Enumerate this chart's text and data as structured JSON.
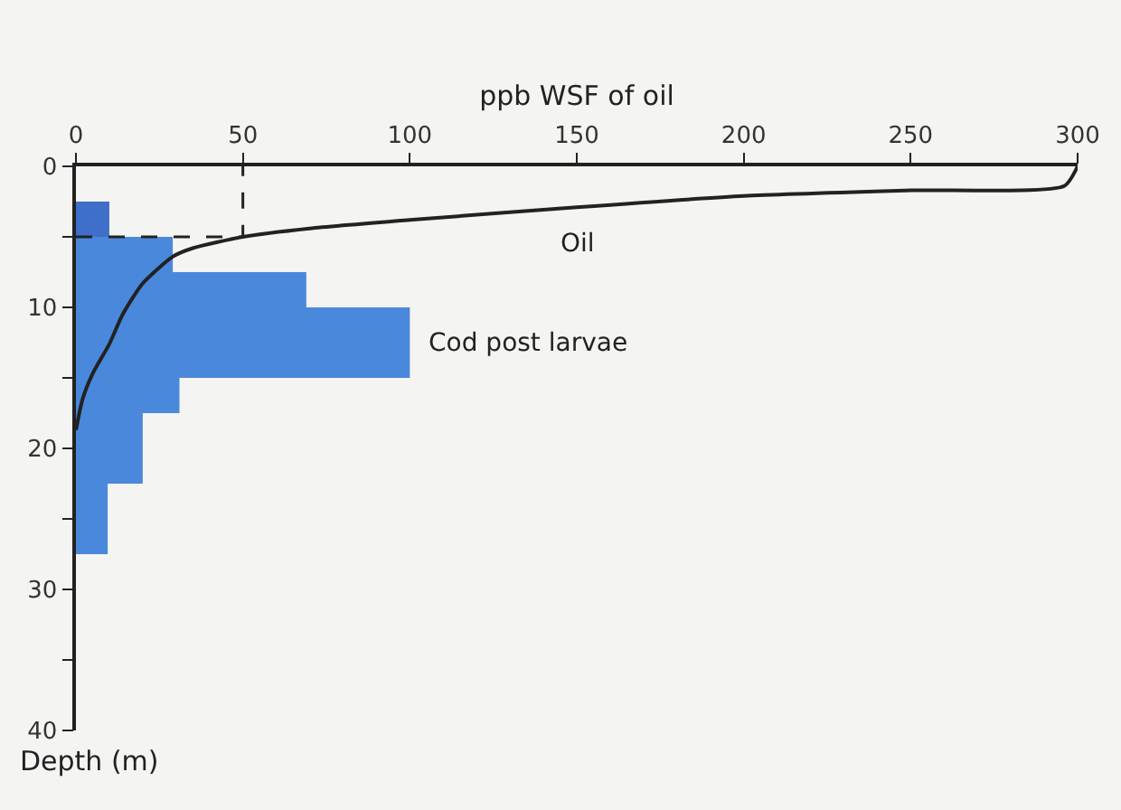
{
  "chart_data": {
    "type": "histogram",
    "orientation": "horizontal",
    "xlabel": "ppb WSF of oil",
    "ylabel": "Depth (m)",
    "xlim": [
      0,
      300
    ],
    "xticks": [
      0,
      50,
      100,
      150,
      200,
      250,
      300
    ],
    "ylim": [
      40,
      0
    ],
    "yticks": [
      0,
      {
        "value": 5,
        "label": null
      },
      10,
      {
        "value": 15,
        "label": null
      },
      20,
      {
        "value": 25,
        "label": null
      },
      30,
      {
        "value": 35,
        "label": null
      },
      40
    ],
    "grid": false,
    "series": [
      {
        "name": "Cod post larvae",
        "bins": [
          2.5,
          5,
          7.5,
          10,
          15,
          17.5,
          22.5,
          27.5
        ],
        "values": [
          10,
          29,
          69,
          100,
          31,
          20,
          9.5
        ],
        "colors": [
          "#3f6fc8",
          "#4a88dc",
          "#4a88dc",
          "#4a88dc",
          "#4a88dc",
          "#4a88dc",
          "#4a88dc"
        ]
      },
      {
        "name": "Oil",
        "type": "line",
        "color": "#222222",
        "line_style": "solid",
        "x": [
          0,
          1.4,
          1.7,
          2.1,
          2.9,
          3.8,
          4.4,
          5.0,
          5.8,
          6.4,
          8.3,
          10.5,
          12.6,
          14.7,
          16.5,
          18.7
        ],
        "values": [
          300,
          296,
          250,
          200,
          150,
          100,
          70,
          50,
          35,
          29,
          20,
          14,
          10,
          5,
          2,
          0
        ]
      },
      {
        "type": "line",
        "color": "#222222",
        "line_style": "dashed",
        "x": [
          5,
          5,
          0
        ],
        "values": [
          0,
          50,
          50
        ]
      }
    ]
  }
}
